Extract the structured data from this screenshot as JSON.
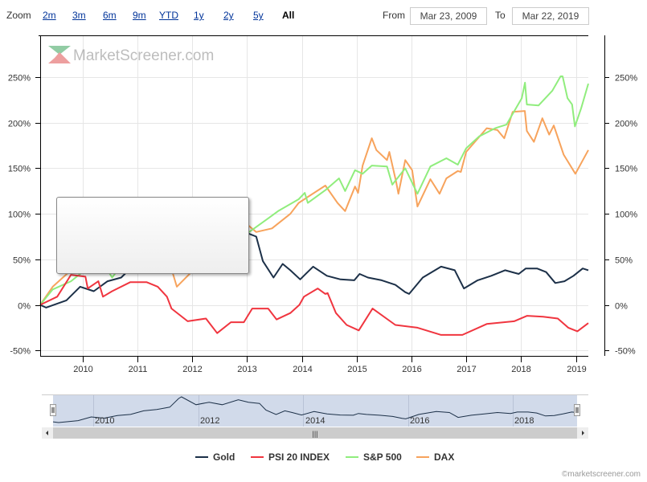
{
  "range_selector": {
    "zoom_label": "Zoom",
    "buttons": [
      "2m",
      "3m",
      "6m",
      "9m",
      "YTD",
      "1y",
      "2y",
      "5y",
      "All"
    ],
    "active": "All",
    "from_label": "From",
    "from_value": "Mar 23, 2009",
    "to_label": "To",
    "to_value": "Mar 22, 2019"
  },
  "watermark": {
    "logo_text": "MarketScreener.com"
  },
  "copyright": "©marketscreener.com",
  "navigator": {
    "labels": [
      "2010",
      "2012",
      "2014",
      "2016",
      "2018"
    ],
    "scroll_grip": "|||"
  },
  "chart_data": {
    "type": "line",
    "xlabel": "",
    "ylabel": "",
    "x_range": [
      "2009-03-23",
      "2019-03-22"
    ],
    "x_tick_labels": [
      "2010",
      "2011",
      "2012",
      "2013",
      "2014",
      "2015",
      "2016",
      "2017",
      "2018",
      "2019"
    ],
    "y_tick_labels": [
      "-50%",
      "0%",
      "50%",
      "100%",
      "150%",
      "200%",
      "250%"
    ],
    "y_ticks": [
      -50,
      0,
      50,
      100,
      150,
      200,
      250
    ],
    "ylim": [
      -56,
      296
    ],
    "grid": true,
    "legend_position": "bottom",
    "series": [
      {
        "name": "Gold",
        "color": "#1c3048",
        "points": [
          [
            "2009-03-23",
            0
          ],
          [
            "2009-05-01",
            -3
          ],
          [
            "2009-09-15",
            5
          ],
          [
            "2009-12-15",
            20
          ],
          [
            "2010-03-15",
            15
          ],
          [
            "2010-06-15",
            26
          ],
          [
            "2010-09-15",
            30
          ],
          [
            "2010-12-15",
            45
          ],
          [
            "2011-03-15",
            50
          ],
          [
            "2011-06-15",
            60
          ],
          [
            "2011-08-15",
            95
          ],
          [
            "2011-09-05",
            102
          ],
          [
            "2011-12-15",
            70
          ],
          [
            "2012-03-15",
            80
          ],
          [
            "2012-06-15",
            70
          ],
          [
            "2012-10-05",
            90
          ],
          [
            "2012-12-15",
            80
          ],
          [
            "2013-03-01",
            75
          ],
          [
            "2013-04-15",
            48
          ],
          [
            "2013-06-25",
            30
          ],
          [
            "2013-08-25",
            45
          ],
          [
            "2013-10-15",
            38
          ],
          [
            "2013-12-20",
            28
          ],
          [
            "2014-03-15",
            42
          ],
          [
            "2014-06-15",
            32
          ],
          [
            "2014-09-15",
            28
          ],
          [
            "2014-12-15",
            27
          ],
          [
            "2015-01-20",
            34
          ],
          [
            "2015-03-15",
            30
          ],
          [
            "2015-06-15",
            27
          ],
          [
            "2015-09-15",
            22
          ],
          [
            "2015-11-20",
            14
          ],
          [
            "2015-12-15",
            12
          ],
          [
            "2016-03-15",
            30
          ],
          [
            "2016-07-15",
            42
          ],
          [
            "2016-10-15",
            38
          ],
          [
            "2016-12-15",
            18
          ],
          [
            "2017-03-15",
            27
          ],
          [
            "2017-06-15",
            32
          ],
          [
            "2017-09-15",
            38
          ],
          [
            "2017-12-15",
            34
          ],
          [
            "2018-02-01",
            40
          ],
          [
            "2018-04-15",
            40
          ],
          [
            "2018-06-15",
            36
          ],
          [
            "2018-08-15",
            24
          ],
          [
            "2018-10-15",
            26
          ],
          [
            "2018-12-15",
            32
          ],
          [
            "2019-02-15",
            40
          ],
          [
            "2019-03-22",
            38
          ]
        ]
      },
      {
        "name": "PSI 20 INDEX",
        "color": "#f0353f",
        "points": [
          [
            "2009-03-23",
            0
          ],
          [
            "2009-07-15",
            9
          ],
          [
            "2009-10-15",
            33
          ],
          [
            "2010-01-20",
            31
          ],
          [
            "2010-02-05",
            18
          ],
          [
            "2010-04-15",
            26
          ],
          [
            "2010-05-15",
            9
          ],
          [
            "2010-07-15",
            15
          ],
          [
            "2010-11-15",
            25
          ],
          [
            "2011-03-01",
            25
          ],
          [
            "2011-05-15",
            20
          ],
          [
            "2011-07-15",
            9
          ],
          [
            "2011-08-15",
            -4
          ],
          [
            "2011-12-01",
            -18
          ],
          [
            "2012-04-01",
            -15
          ],
          [
            "2012-06-15",
            -31
          ],
          [
            "2012-09-15",
            -19
          ],
          [
            "2012-12-10",
            -19
          ],
          [
            "2013-02-05",
            -4
          ],
          [
            "2013-05-20",
            -4
          ],
          [
            "2013-07-15",
            -16
          ],
          [
            "2013-10-15",
            -9
          ],
          [
            "2013-12-15",
            0
          ],
          [
            "2014-01-15",
            9
          ],
          [
            "2014-04-15",
            18
          ],
          [
            "2014-06-05",
            12
          ],
          [
            "2014-06-20",
            13
          ],
          [
            "2014-08-15",
            -9
          ],
          [
            "2014-10-25",
            -22
          ],
          [
            "2015-01-15",
            -28
          ],
          [
            "2015-04-15",
            -4
          ],
          [
            "2015-09-15",
            -22
          ],
          [
            "2016-02-10",
            -25
          ],
          [
            "2016-07-15",
            -33
          ],
          [
            "2016-12-05",
            -33
          ],
          [
            "2017-05-15",
            -21
          ],
          [
            "2017-11-15",
            -18
          ],
          [
            "2018-02-10",
            -12
          ],
          [
            "2018-05-25",
            -13
          ],
          [
            "2018-09-01",
            -15
          ],
          [
            "2018-11-10",
            -25
          ],
          [
            "2019-01-10",
            -29
          ],
          [
            "2019-03-22",
            -20
          ]
        ]
      },
      {
        "name": "S&P 500",
        "color": "#90ed7d",
        "points": [
          [
            "2009-03-23",
            0
          ],
          [
            "2009-06-15",
            17
          ],
          [
            "2009-10-15",
            26
          ],
          [
            "2010-01-15",
            38
          ],
          [
            "2010-04-15",
            55
          ],
          [
            "2010-07-15",
            30
          ],
          [
            "2010-10-15",
            50
          ],
          [
            "2011-01-15",
            65
          ],
          [
            "2011-04-15",
            72
          ],
          [
            "2011-08-15",
            42
          ],
          [
            "2011-10-15",
            50
          ],
          [
            "2012-03-15",
            78
          ],
          [
            "2012-06-15",
            68
          ],
          [
            "2012-09-15",
            88
          ],
          [
            "2012-12-20",
            77
          ],
          [
            "2013-05-20",
            95
          ],
          [
            "2013-07-25",
            103
          ],
          [
            "2013-12-10",
            116
          ],
          [
            "2014-01-20",
            123
          ],
          [
            "2014-02-10",
            112
          ],
          [
            "2014-06-05",
            126
          ],
          [
            "2014-09-05",
            139
          ],
          [
            "2014-10-15",
            125
          ],
          [
            "2014-12-20",
            148
          ],
          [
            "2015-02-10",
            144
          ],
          [
            "2015-04-10",
            153
          ],
          [
            "2015-07-20",
            152
          ],
          [
            "2015-08-25",
            132
          ],
          [
            "2015-11-20",
            150
          ],
          [
            "2016-02-10",
            122
          ],
          [
            "2016-05-05",
            152
          ],
          [
            "2016-08-20",
            161
          ],
          [
            "2016-11-05",
            154
          ],
          [
            "2016-12-30",
            172
          ],
          [
            "2017-03-25",
            185
          ],
          [
            "2017-07-10",
            194
          ],
          [
            "2017-09-25",
            198
          ],
          [
            "2018-01-05",
            227
          ],
          [
            "2018-01-26",
            244
          ],
          [
            "2018-02-08",
            220
          ],
          [
            "2018-04-25",
            219
          ],
          [
            "2018-07-25",
            235
          ],
          [
            "2018-09-20",
            251
          ],
          [
            "2018-10-03",
            251
          ],
          [
            "2018-11-05",
            227
          ],
          [
            "2018-12-05",
            220
          ],
          [
            "2018-12-24",
            196
          ],
          [
            "2019-02-05",
            216
          ],
          [
            "2019-03-22",
            243
          ]
        ]
      },
      {
        "name": "DAX",
        "color": "#f7a35c",
        "points": [
          [
            "2009-03-23",
            0
          ],
          [
            "2009-06-15",
            20
          ],
          [
            "2009-10-15",
            38
          ],
          [
            "2010-01-15",
            50
          ],
          [
            "2010-04-15",
            62
          ],
          [
            "2010-07-15",
            55
          ],
          [
            "2010-10-15",
            60
          ],
          [
            "2011-01-15",
            80
          ],
          [
            "2011-05-15",
            90
          ],
          [
            "2011-09-20",
            20
          ],
          [
            "2011-12-20",
            35
          ],
          [
            "2012-03-15",
            80
          ],
          [
            "2012-06-15",
            60
          ],
          [
            "2012-09-15",
            85
          ],
          [
            "2012-12-20",
            90
          ],
          [
            "2013-03-01",
            80
          ],
          [
            "2013-06-15",
            84
          ],
          [
            "2013-10-15",
            100
          ],
          [
            "2013-12-10",
            112
          ],
          [
            "2014-06-05",
            131
          ],
          [
            "2014-08-25",
            112
          ],
          [
            "2014-10-15",
            103
          ],
          [
            "2014-12-20",
            130
          ],
          [
            "2015-01-10",
            123
          ],
          [
            "2015-02-10",
            153
          ],
          [
            "2015-04-10",
            183
          ],
          [
            "2015-05-10",
            170
          ],
          [
            "2015-07-20",
            159
          ],
          [
            "2015-08-05",
            168
          ],
          [
            "2015-09-20",
            135
          ],
          [
            "2015-10-05",
            122
          ],
          [
            "2015-11-20",
            159
          ],
          [
            "2016-01-05",
            148
          ],
          [
            "2016-02-10",
            108
          ],
          [
            "2016-05-05",
            138
          ],
          [
            "2016-07-05",
            122
          ],
          [
            "2016-08-20",
            139
          ],
          [
            "2016-11-05",
            147
          ],
          [
            "2016-11-25",
            146
          ],
          [
            "2016-12-30",
            168
          ],
          [
            "2017-05-15",
            194
          ],
          [
            "2017-07-25",
            192
          ],
          [
            "2017-09-10",
            183
          ],
          [
            "2017-11-05",
            212
          ],
          [
            "2018-01-25",
            213
          ],
          [
            "2018-02-08",
            191
          ],
          [
            "2018-03-25",
            179
          ],
          [
            "2018-05-20",
            205
          ],
          [
            "2018-07-05",
            187
          ],
          [
            "2018-08-05",
            197
          ],
          [
            "2018-10-10",
            165
          ],
          [
            "2018-12-27",
            144
          ],
          [
            "2019-03-22",
            170
          ]
        ]
      }
    ]
  }
}
